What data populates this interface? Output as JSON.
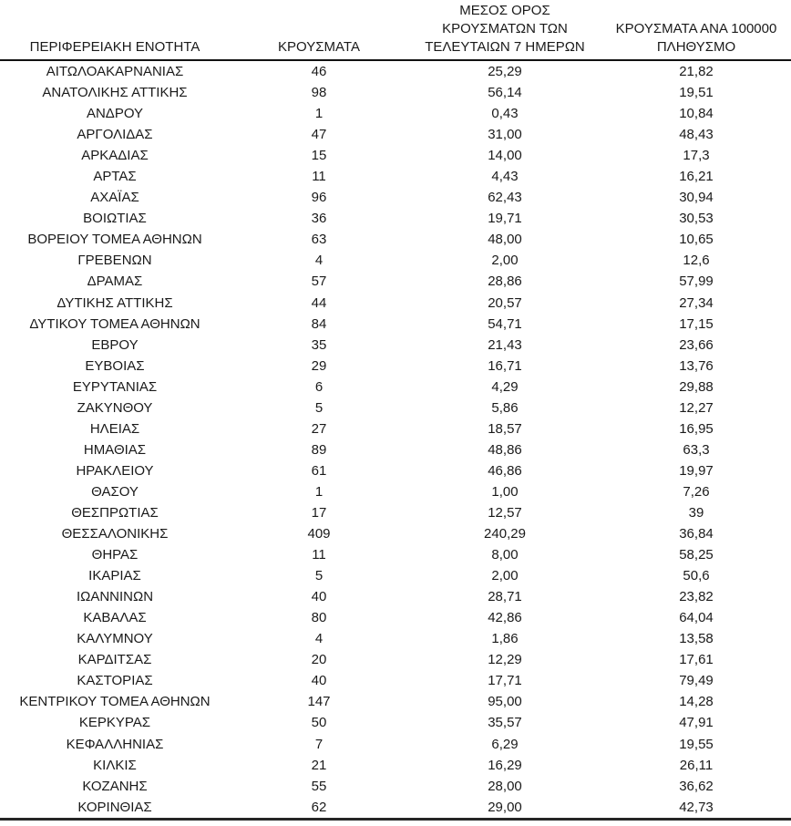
{
  "colors": {
    "background": "#ffffff",
    "text": "#1a1a1a",
    "header_rule": "#111111",
    "bottom_rule": "#262626"
  },
  "chart_data": {
    "type": "table",
    "title": "",
    "layout": {
      "grid": "off",
      "column_alignment": "center",
      "header_rule": "heavy line below header",
      "footer_rule": "heavy line below last row"
    },
    "columns": [
      "ΠΕΡΙΦΕΡΕΙΑΚΗ ΕΝΟΤΗΤΑ",
      "ΚΡΟΥΣΜΑΤΑ",
      "ΜΕΣΟΣ ΟΡΟΣ\nΚΡΟΥΣΜΑΤΩΝ ΤΩΝ\nΤΕΛΕΥΤΑΙΩΝ 7 ΗΜΕΡΩΝ",
      "ΚΡΟΥΣΜΑΤΑ ΑΝΑ 100000\nΠΛΗΘΥΣΜΟ"
    ],
    "rows": [
      [
        "ΑΙΤΩΛΟΑΚΑΡΝΑΝΙΑΣ",
        "46",
        "25,29",
        "21,82"
      ],
      [
        "ΑΝΑΤΟΛΙΚΗΣ ΑΤΤΙΚΗΣ",
        "98",
        "56,14",
        "19,51"
      ],
      [
        "ΑΝΔΡΟΥ",
        "1",
        "0,43",
        "10,84"
      ],
      [
        "ΑΡΓΟΛΙΔΑΣ",
        "47",
        "31,00",
        "48,43"
      ],
      [
        "ΑΡΚΑΔΙΑΣ",
        "15",
        "14,00",
        "17,3"
      ],
      [
        "ΑΡΤΑΣ",
        "11",
        "4,43",
        "16,21"
      ],
      [
        "ΑΧΑΪΑΣ",
        "96",
        "62,43",
        "30,94"
      ],
      [
        "ΒΟΙΩΤΙΑΣ",
        "36",
        "19,71",
        "30,53"
      ],
      [
        "ΒΟΡΕΙΟΥ ΤΟΜΕΑ ΑΘΗΝΩΝ",
        "63",
        "48,00",
        "10,65"
      ],
      [
        "ΓΡΕΒΕΝΩΝ",
        "4",
        "2,00",
        "12,6"
      ],
      [
        "ΔΡΑΜΑΣ",
        "57",
        "28,86",
        "57,99"
      ],
      [
        "ΔΥΤΙΚΗΣ ΑΤΤΙΚΗΣ",
        "44",
        "20,57",
        "27,34"
      ],
      [
        "ΔΥΤΙΚΟΥ ΤΟΜΕΑ ΑΘΗΝΩΝ",
        "84",
        "54,71",
        "17,15"
      ],
      [
        "ΕΒΡΟΥ",
        "35",
        "21,43",
        "23,66"
      ],
      [
        "ΕΥΒΟΙΑΣ",
        "29",
        "16,71",
        "13,76"
      ],
      [
        "ΕΥΡΥΤΑΝΙΑΣ",
        "6",
        "4,29",
        "29,88"
      ],
      [
        "ΖΑΚΥΝΘΟΥ",
        "5",
        "5,86",
        "12,27"
      ],
      [
        "ΗΛΕΙΑΣ",
        "27",
        "18,57",
        "16,95"
      ],
      [
        "ΗΜΑΘΙΑΣ",
        "89",
        "48,86",
        "63,3"
      ],
      [
        "ΗΡΑΚΛΕΙΟΥ",
        "61",
        "46,86",
        "19,97"
      ],
      [
        "ΘΑΣΟΥ",
        "1",
        "1,00",
        "7,26"
      ],
      [
        "ΘΕΣΠΡΩΤΙΑΣ",
        "17",
        "12,57",
        "39"
      ],
      [
        "ΘΕΣΣΑΛΟΝΙΚΗΣ",
        "409",
        "240,29",
        "36,84"
      ],
      [
        "ΘΗΡΑΣ",
        "11",
        "8,00",
        "58,25"
      ],
      [
        "ΙΚΑΡΙΑΣ",
        "5",
        "2,00",
        "50,6"
      ],
      [
        "ΙΩΑΝΝΙΝΩΝ",
        "40",
        "28,71",
        "23,82"
      ],
      [
        "ΚΑΒΑΛΑΣ",
        "80",
        "42,86",
        "64,04"
      ],
      [
        "ΚΑΛΥΜΝΟΥ",
        "4",
        "1,86",
        "13,58"
      ],
      [
        "ΚΑΡΔΙΤΣΑΣ",
        "20",
        "12,29",
        "17,61"
      ],
      [
        "ΚΑΣΤΟΡΙΑΣ",
        "40",
        "17,71",
        "79,49"
      ],
      [
        "ΚΕΝΤΡΙΚΟΥ ΤΟΜΕΑ ΑΘΗΝΩΝ",
        "147",
        "95,00",
        "14,28"
      ],
      [
        "ΚΕΡΚΥΡΑΣ",
        "50",
        "35,57",
        "47,91"
      ],
      [
        "ΚΕΦΑΛΛΗΝΙΑΣ",
        "7",
        "6,29",
        "19,55"
      ],
      [
        "ΚΙΛΚΙΣ",
        "21",
        "16,29",
        "26,11"
      ],
      [
        "ΚΟΖΑΝΗΣ",
        "55",
        "28,00",
        "36,62"
      ],
      [
        "ΚΟΡΙΝΘΙΑΣ",
        "62",
        "29,00",
        "42,73"
      ]
    ]
  }
}
